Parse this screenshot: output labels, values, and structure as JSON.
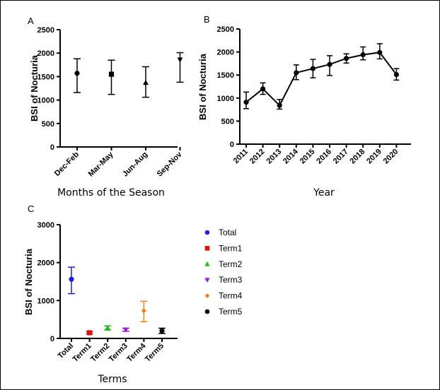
{
  "chart_data": [
    {
      "panel": "A",
      "type": "scatter",
      "categories": [
        "Dec-Feb",
        "Mar-May",
        "Jun-Aug",
        "Sep-Nov"
      ],
      "values": [
        1570,
        1550,
        1370,
        1860
      ],
      "error_low": [
        1160,
        1120,
        1060,
        1380
      ],
      "error_high": [
        1880,
        1850,
        1710,
        2010
      ],
      "markers": [
        "circle",
        "square",
        "triangle",
        "triangle-down"
      ],
      "xlabel": "Months of the Season",
      "ylabel": "BSI of Nocturia",
      "ylim": [
        0,
        2500
      ],
      "yticks": [
        0,
        500,
        1000,
        1500,
        2000,
        2500
      ]
    },
    {
      "panel": "B",
      "type": "line",
      "categories": [
        "2011",
        "2012",
        "2013",
        "2014",
        "2015",
        "2016",
        "2017",
        "2018",
        "2019",
        "2020"
      ],
      "values": [
        910,
        1200,
        840,
        1550,
        1640,
        1730,
        1860,
        1940,
        1990,
        1510
      ],
      "error_low": [
        770,
        1080,
        760,
        1400,
        1440,
        1490,
        1760,
        1830,
        1850,
        1390
      ],
      "error_high": [
        1130,
        1330,
        970,
        1720,
        1840,
        1920,
        1960,
        2110,
        2180,
        1640
      ],
      "xlabel": "Year",
      "ylabel": "BSI of Nocturia",
      "ylim": [
        0,
        2500
      ],
      "yticks": [
        0,
        500,
        1000,
        1500,
        2000,
        2500
      ]
    },
    {
      "panel": "C",
      "type": "scatter",
      "categories": [
        "Total",
        "Term1",
        "Term2",
        "Term3",
        "Term4",
        "Term5"
      ],
      "values": [
        1560,
        150,
        280,
        230,
        730,
        200
      ],
      "error_low": [
        1180,
        120,
        220,
        190,
        440,
        130
      ],
      "error_high": [
        1880,
        180,
        330,
        270,
        980,
        270
      ],
      "colors": [
        "#1f1fdc",
        "#e01010",
        "#22b822",
        "#9b19d6",
        "#f07f1a",
        "#000000"
      ],
      "markers": [
        "circle",
        "square",
        "triangle",
        "triangle-down",
        "diamond",
        "circle"
      ],
      "xlabel": "Terms",
      "ylabel": "BSI of Nocturia",
      "ylim": [
        0,
        3000
      ],
      "yticks": [
        0,
        1000,
        2000,
        3000
      ],
      "legend": [
        "Total",
        "Term1",
        "Term2",
        "Term3",
        "Term4",
        "Term5"
      ],
      "legend_position": "right"
    }
  ]
}
